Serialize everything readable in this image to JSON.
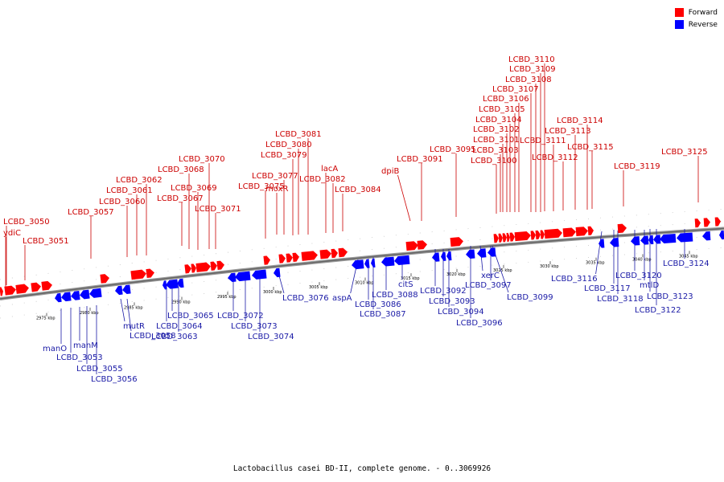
{
  "legend": {
    "forward_label": "Forward",
    "reverse_label": "Reverse",
    "forward_color": "#ff0000",
    "reverse_color": "#0000ff"
  },
  "caption": "Lactobacillus casei BD-II, complete genome. - 0..3069926",
  "scale_ticks": [
    "2975 kbp",
    "2980 kbp",
    "2985 kbp",
    "2990 kbp",
    "2995 kbp",
    "3000 kbp",
    "3005 kbp",
    "3010 kbp",
    "3015 kbp",
    "3020 kbp",
    "3025 kbp",
    "3030 kbp",
    "3035 kbp",
    "3040 kbp",
    "3045 kbp"
  ],
  "forward_labels": [
    "LCBD_3050",
    "ydiC",
    "LCBD_3051",
    "LCBD_3057",
    "LCBD_3060",
    "LCBD_3061",
    "LCBD_3062",
    "LCBD_3067",
    "LCBD_3068",
    "LCBD_3069",
    "LCBD_3070",
    "LCBD_3071",
    "LCBD_3075",
    "moxR",
    "LCBD_3077",
    "LCBD_3079",
    "LCBD_3080",
    "LCBD_3081",
    "lacA",
    "LCBD_3082",
    "LCBD_3084",
    "dpiB",
    "LCBD_3091",
    "LCBD_3095",
    "LCBD_3100",
    "LCBD_3103",
    "LCBD_3101",
    "LCBD_3102",
    "LCBD_3104",
    "LCBD_3105",
    "LCBD_3106",
    "LCBD_3107",
    "LCBD_3108",
    "LCBD_3109",
    "LCBD_3110",
    "LCBD_3111",
    "LCBD_3112",
    "LCBD_3113",
    "LCBD_3114",
    "LCBD_3115",
    "LCBD_3119",
    "LCBD_3125"
  ],
  "reverse_labels": [
    "manO",
    "LCBD_3053",
    "manM",
    "LCBD_3055",
    "LCBD_3056",
    "mutR",
    "LCBD_3058",
    "LCBD_3065",
    "LCBD_3064",
    "LCBD_3063",
    "LCBD_3072",
    "LCBD_3073",
    "LCBD_3074",
    "LCBD_3076",
    "aspA",
    "LCBD_3086",
    "LCBD_3087",
    "LCBD_3088",
    "citS",
    "LCBD_3092",
    "LCBD_3093",
    "LCBD_3094",
    "LCBD_3096",
    "xerC",
    "LCBD_3097",
    "LCBD_3099",
    "LCBD_3116",
    "LCBD_3117",
    "LCBD_3118",
    "LCBD_3120",
    "mtlD",
    "LCBD_3123",
    "LCBD_3122",
    "LCBD_3124"
  ]
}
